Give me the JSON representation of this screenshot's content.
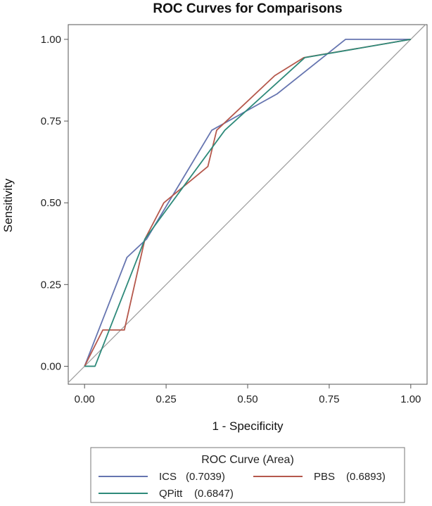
{
  "chart_data": {
    "type": "line",
    "title": "ROC Curves for Comparisons",
    "xlabel": "1 - Specificity",
    "ylabel": "Sensitivity",
    "xlim": [
      -0.05,
      1.05
    ],
    "ylim": [
      -0.055,
      1.045
    ],
    "grid": false,
    "xticks": [
      "0.00",
      "0.25",
      "0.50",
      "0.75",
      "1.00"
    ],
    "yticks": [
      "0.00",
      "0.25",
      "0.50",
      "0.75",
      "1.00"
    ],
    "xtick_values": [
      0,
      0.25,
      0.5,
      0.75,
      1.0
    ],
    "ytick_values": [
      0,
      0.25,
      0.5,
      0.75,
      1.0
    ],
    "reference_line": {
      "x": [
        0,
        1
      ],
      "y": [
        0,
        1
      ],
      "color": "#a0a0a0"
    },
    "legend": {
      "title": "ROC Curve (Area)",
      "position": "bottom"
    },
    "series": [
      {
        "name": "ICS",
        "area": "(0.7039)",
        "color": "#6675b0",
        "x": [
          0,
          0.13,
          0.19,
          0.39,
          0.59,
          0.8,
          1.0
        ],
        "y": [
          0,
          0.333,
          0.389,
          0.722,
          0.833,
          1.0,
          1.0
        ]
      },
      {
        "name": "PBS",
        "area": "(0.6893)",
        "color": "#b5584c",
        "x": [
          0,
          0.056,
          0.122,
          0.185,
          0.243,
          0.378,
          0.405,
          0.583,
          0.672,
          1.0
        ],
        "y": [
          0,
          0.111,
          0.111,
          0.389,
          0.5,
          0.611,
          0.722,
          0.889,
          0.944,
          1.0
        ]
      },
      {
        "name": "QPitt",
        "area": "(0.6847)",
        "color": "#2e8a7a",
        "x": [
          0,
          0.032,
          0.185,
          0.43,
          0.675,
          1.0
        ],
        "y": [
          0,
          0,
          0.389,
          0.722,
          0.944,
          1.0
        ]
      }
    ]
  }
}
